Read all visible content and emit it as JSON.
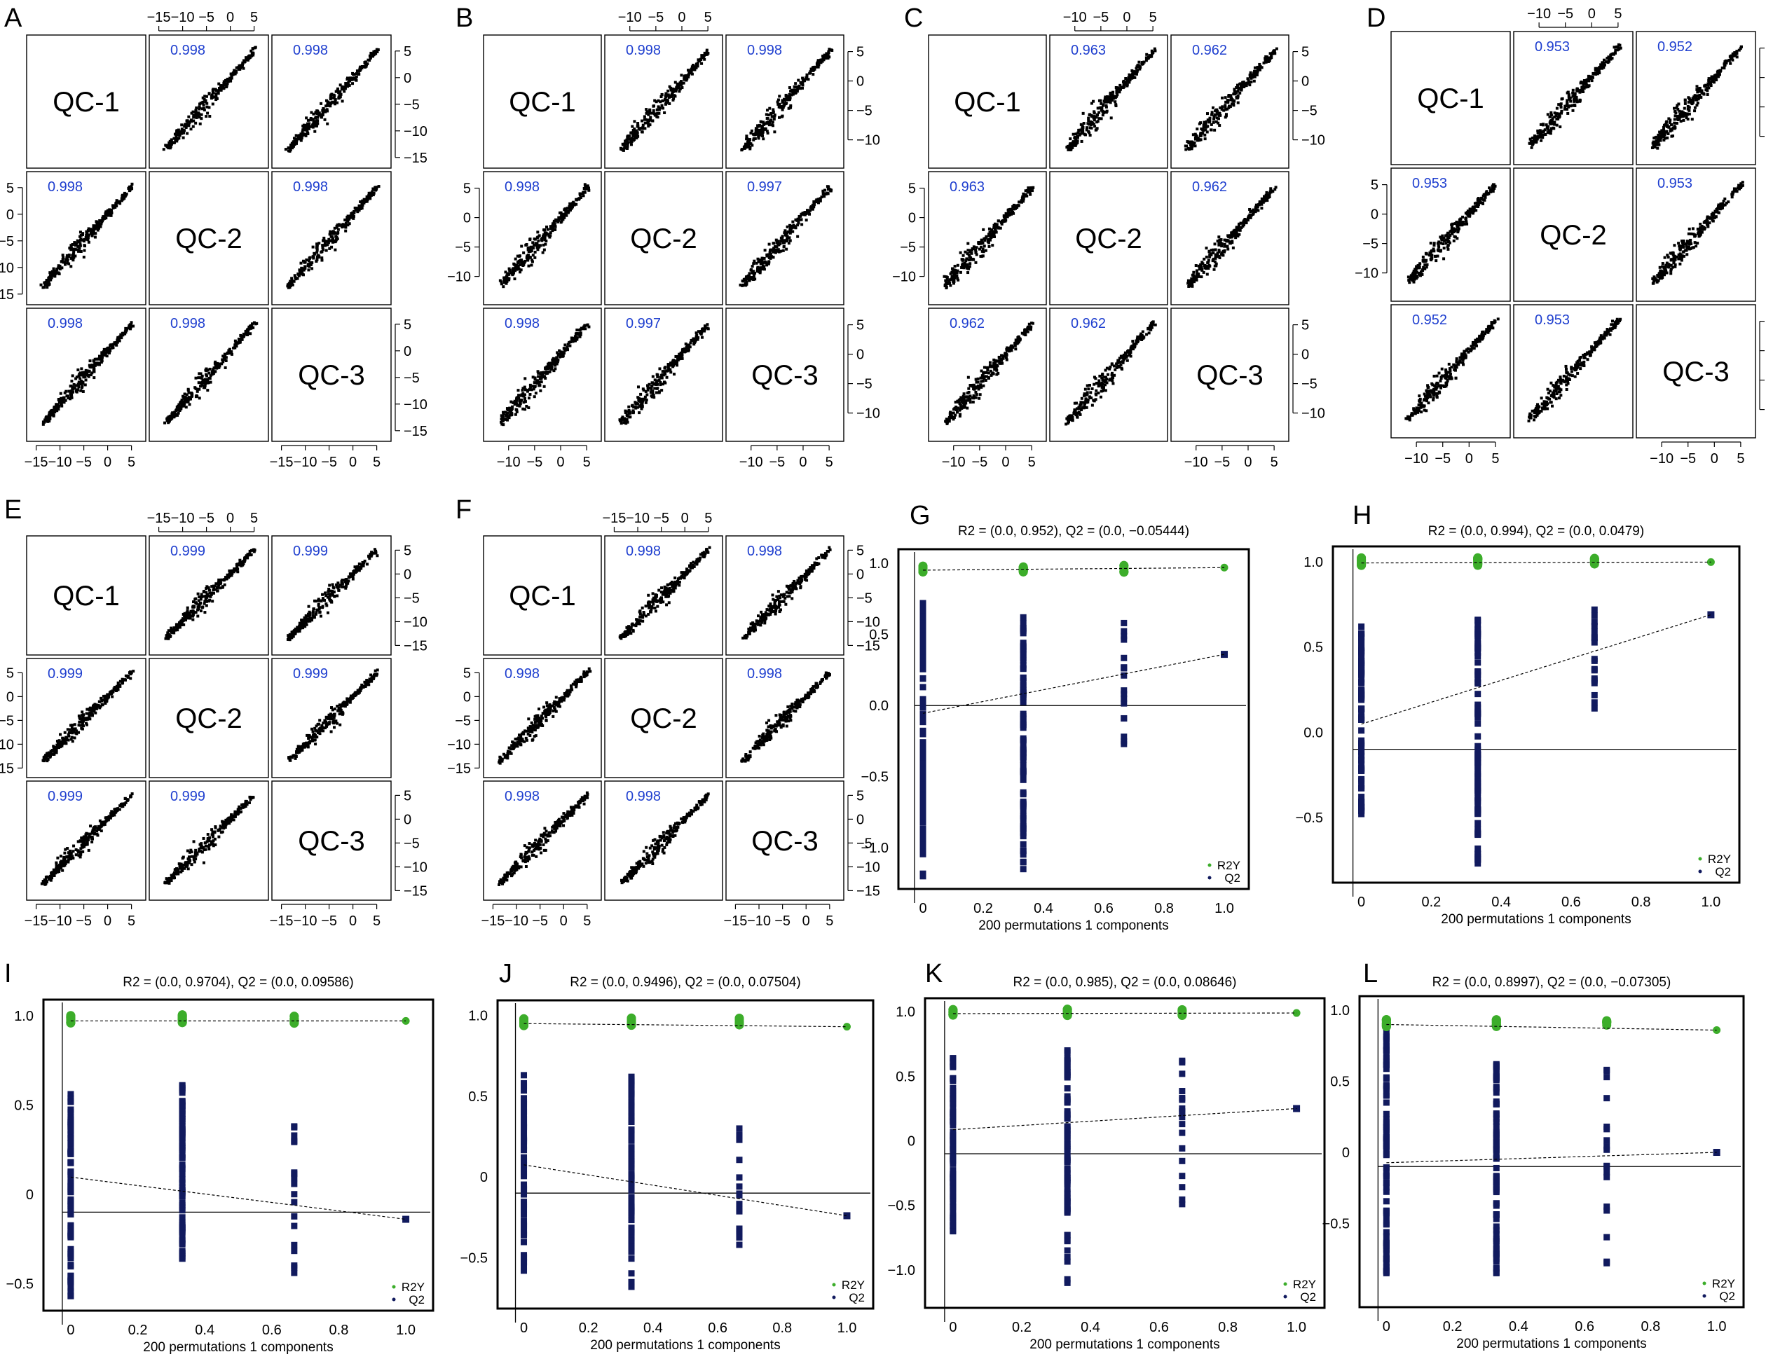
{
  "colors": {
    "correlation_text": "#1f3fcf",
    "r2y_points": "#3cad2a",
    "q2_points": "#111a5e",
    "scatter_points": "#000000"
  },
  "chart_data": [
    {
      "type": "scatter-matrix",
      "panel": "A",
      "variables": [
        "QC-1",
        "QC-2",
        "QC-3"
      ],
      "axis_ticks": [
        "−15",
        "−10",
        "−5",
        "0",
        "5"
      ],
      "axis_range": [
        -15,
        6
      ],
      "correlations": {
        "QC-1|QC-2": "0.998",
        "QC-1|QC-3": "0.998",
        "QC-2|QC-3": "0.998"
      }
    },
    {
      "type": "scatter-matrix",
      "panel": "B",
      "variables": [
        "QC-1",
        "QC-2",
        "QC-3"
      ],
      "axis_ticks": [
        "−10",
        "−5",
        "0",
        "5"
      ],
      "axis_range": [
        -13,
        6
      ],
      "correlations": {
        "QC-1|QC-2": "0.998",
        "QC-1|QC-3": "0.998",
        "QC-2|QC-3": "0.997"
      }
    },
    {
      "type": "scatter-matrix",
      "panel": "C",
      "variables": [
        "QC-1",
        "QC-2",
        "QC-3"
      ],
      "axis_ticks": [
        "−10",
        "−5",
        "0",
        "5"
      ],
      "axis_range": [
        -13,
        6
      ],
      "correlations": {
        "QC-1|QC-2": "0.963",
        "QC-1|QC-3": "0.962",
        "QC-2|QC-3": "0.962"
      }
    },
    {
      "type": "scatter-matrix",
      "panel": "D",
      "variables": [
        "QC-1",
        "QC-2",
        "QC-3"
      ],
      "axis_ticks": [
        "−10",
        "−5",
        "0",
        "5"
      ],
      "axis_range": [
        -13,
        6
      ],
      "correlations": {
        "QC-1|QC-2": "0.953",
        "QC-1|QC-3": "0.952",
        "QC-2|QC-3": "0.953"
      }
    },
    {
      "type": "scatter-matrix",
      "panel": "E",
      "variables": [
        "QC-1",
        "QC-2",
        "QC-3"
      ],
      "axis_ticks": [
        "−15",
        "−10",
        "−5",
        "0",
        "5"
      ],
      "axis_range": [
        -15,
        6
      ],
      "correlations": {
        "QC-1|QC-2": "0.999",
        "QC-1|QC-3": "0.999",
        "QC-2|QC-3": "0.999"
      }
    },
    {
      "type": "scatter-matrix",
      "panel": "F",
      "variables": [
        "QC-1",
        "QC-2",
        "QC-3"
      ],
      "axis_ticks": [
        "−15",
        "−10",
        "−5",
        "0",
        "5"
      ],
      "axis_range": [
        -15,
        6
      ],
      "correlations": {
        "QC-1|QC-2": "0.998",
        "QC-1|QC-3": "0.998",
        "QC-2|QC-3": "0.998"
      }
    },
    {
      "type": "scatter",
      "panel": "G",
      "title": "R2 = (0.0, 0.952), Q2 = (0.0, −0.05444)",
      "xlabel": "200 permutations 1 components",
      "xlim": [
        0,
        1
      ],
      "ylim": [
        -1.25,
        1.05
      ],
      "x_ticks": [
        "0",
        "0.2",
        "0.4",
        "0.6",
        "0.8",
        "1.0"
      ],
      "y_ticks": [
        "−1.0",
        "−0.5",
        "0.0",
        "0.5",
        "1.0"
      ],
      "legend": [
        "R2Y",
        "Q2"
      ],
      "r2y_line": [
        0.952,
        0.97
      ],
      "q2_line": [
        -0.05444,
        0.36
      ],
      "q2_columns": [
        {
          "x": 0,
          "min": -1.2,
          "max": 0.72
        },
        {
          "x": 0.333,
          "min": -1.15,
          "max": 0.62
        },
        {
          "x": 0.667,
          "min": -0.27,
          "max": 0.58
        }
      ]
    },
    {
      "type": "scatter",
      "panel": "H",
      "title": "R2 = (0.0, 0.994), Q2 = (0.0, 0.0479)",
      "xlabel": "200 permutations 1 components",
      "xlim": [
        0,
        1
      ],
      "ylim": [
        -0.85,
        1.05
      ],
      "x_ticks": [
        "0",
        "0.2",
        "0.4",
        "0.6",
        "0.8",
        "1.0"
      ],
      "y_ticks": [
        "−0.5",
        "0.0",
        "0.5",
        "1.0"
      ],
      "legend": [
        "R2Y",
        "Q2"
      ],
      "r2y_line": [
        0.994,
        0.999
      ],
      "q2_line": [
        0.0479,
        0.69
      ],
      "q2_columns": [
        {
          "x": 0,
          "min": -0.48,
          "max": 0.62
        },
        {
          "x": 0.333,
          "min": -0.77,
          "max": 0.66
        },
        {
          "x": 0.667,
          "min": 0.14,
          "max": 0.72
        }
      ]
    },
    {
      "type": "scatter",
      "panel": "I",
      "title": "R2 = (0.0, 0.9704), Q2 = (0.0, 0.09586)",
      "xlabel": "200 permutations 1 components",
      "xlim": [
        0,
        1
      ],
      "ylim": [
        -0.62,
        1.05
      ],
      "x_ticks": [
        "0",
        "0.2",
        "0.4",
        "0.6",
        "0.8",
        "1.0"
      ],
      "y_ticks": [
        "−0.5",
        "0",
        "0.5",
        "1.0"
      ],
      "legend": [
        "R2Y",
        "Q2"
      ],
      "r2y_line": [
        0.9704,
        0.97
      ],
      "q2_line": [
        0.09586,
        -0.14
      ],
      "q2_columns": [
        {
          "x": 0,
          "min": -0.57,
          "max": 0.56
        },
        {
          "x": 0.333,
          "min": -0.36,
          "max": 0.61
        },
        {
          "x": 0.667,
          "min": -0.44,
          "max": 0.38
        }
      ]
    },
    {
      "type": "scatter",
      "panel": "J",
      "title": "R2 = (0.0, 0.9496), Q2 = (0.0, 0.07504)",
      "xlabel": "200 permutations 1 components",
      "xlim": [
        0,
        1
      ],
      "ylim": [
        -0.78,
        1.05
      ],
      "x_ticks": [
        "0",
        "0.2",
        "0.4",
        "0.6",
        "0.8",
        "1.0"
      ],
      "y_ticks": [
        "−0.5",
        "0",
        "0.5",
        "1.0"
      ],
      "legend": [
        "R2Y",
        "Q2"
      ],
      "r2y_line": [
        0.9496,
        0.93
      ],
      "q2_line": [
        0.07504,
        -0.24
      ],
      "q2_columns": [
        {
          "x": 0,
          "min": -0.58,
          "max": 0.63
        },
        {
          "x": 0.333,
          "min": -0.68,
          "max": 0.62
        },
        {
          "x": 0.667,
          "min": -0.42,
          "max": 0.3
        }
      ]
    },
    {
      "type": "scatter",
      "panel": "K",
      "title": "R2 = (0.0, 0.985), Q2 = (0.0, 0.08646)",
      "xlabel": "200 permutations 1 components",
      "xlim": [
        0,
        1
      ],
      "ylim": [
        -1.25,
        1.05
      ],
      "x_ticks": [
        "0",
        "0.2",
        "0.4",
        "0.6",
        "0.8",
        "1.0"
      ],
      "y_ticks": [
        "−1.0",
        "−0.5",
        "0",
        "0.5",
        "1.0"
      ],
      "legend": [
        "R2Y",
        "Q2"
      ],
      "r2y_line": [
        0.985,
        0.99
      ],
      "q2_line": [
        0.08646,
        0.25
      ],
      "q2_columns": [
        {
          "x": 0,
          "min": -0.7,
          "max": 0.64
        },
        {
          "x": 0.333,
          "min": -1.1,
          "max": 0.7
        },
        {
          "x": 0.667,
          "min": -0.49,
          "max": 0.62
        }
      ]
    },
    {
      "type": "scatter",
      "panel": "L",
      "title": "R2 = (0.0, 0.8997), Q2 = (0.0, −0.07305)",
      "xlabel": "200 permutations 1 components",
      "xlim": [
        0,
        1
      ],
      "ylim": [
        -1.05,
        1.05
      ],
      "x_ticks": [
        "0",
        "0.2",
        "0.4",
        "0.6",
        "0.8",
        "1.0"
      ],
      "y_ticks": [
        "−0.5",
        "0",
        "0.5",
        "1.0"
      ],
      "legend": [
        "R2Y",
        "Q2"
      ],
      "r2y_line": [
        0.8997,
        0.86
      ],
      "q2_line": [
        -0.07305,
        0.0
      ],
      "q2_columns": [
        {
          "x": 0,
          "min": -0.85,
          "max": 0.92
        },
        {
          "x": 0.333,
          "min": -0.85,
          "max": 0.62
        },
        {
          "x": 0.667,
          "min": -0.78,
          "max": 0.58
        }
      ]
    }
  ]
}
